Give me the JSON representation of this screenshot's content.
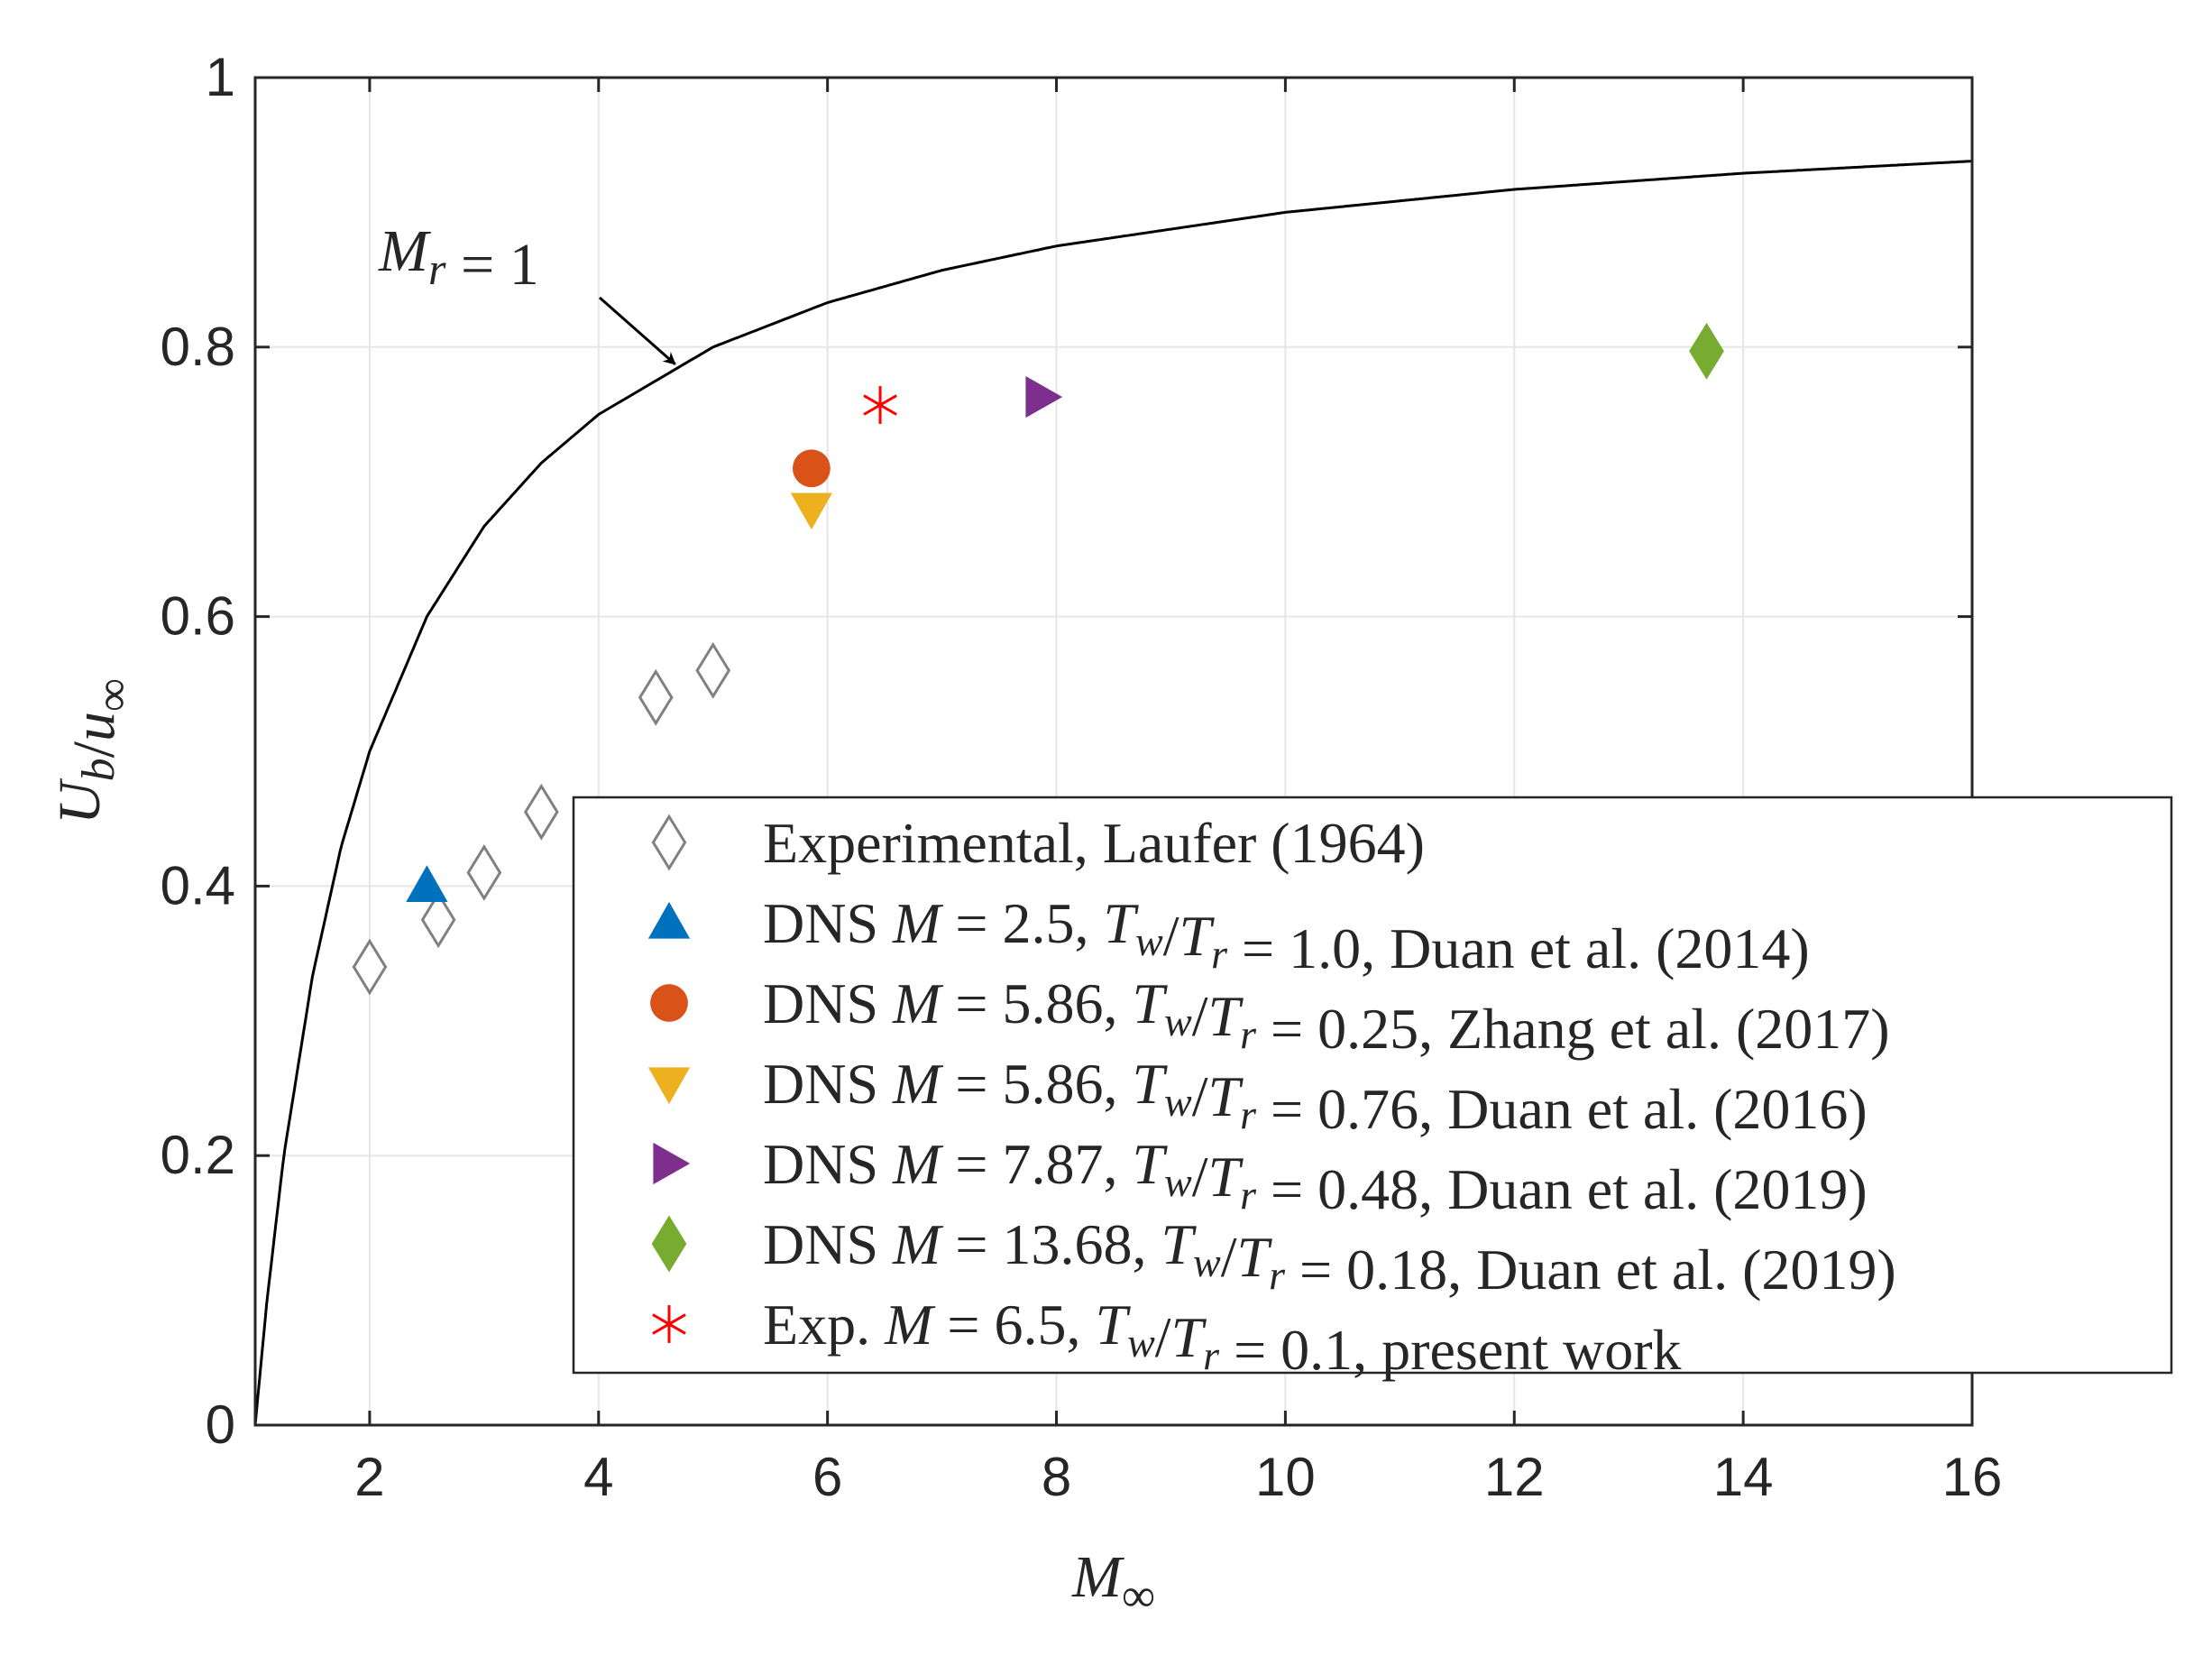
{
  "chart_data": {
    "type": "scatter",
    "xlabel": "M∞",
    "ylabel": "U_b/u∞",
    "xlim": [
      1,
      16
    ],
    "ylim": [
      0,
      1
    ],
    "xticks": [
      "2",
      "4",
      "6",
      "8",
      "10",
      "12",
      "14",
      "16"
    ],
    "yticks": [
      "0",
      "0.2",
      "0.4",
      "0.6",
      "0.8",
      "1"
    ],
    "grid": true,
    "curve": {
      "name": "M_r = 1",
      "label": "M_r = 1",
      "color": "#000000",
      "x": [
        1.0,
        1.1,
        1.25,
        1.5,
        1.75,
        2.0,
        2.5,
        3.0,
        3.5,
        4.0,
        5.0,
        6.0,
        7.0,
        8.0,
        10.0,
        12.0,
        14.0,
        16.0
      ],
      "y": [
        0.0,
        0.09,
        0.2,
        0.333,
        0.429,
        0.5,
        0.6,
        0.667,
        0.714,
        0.75,
        0.8,
        0.833,
        0.857,
        0.875,
        0.9,
        0.917,
        0.929,
        0.938
      ]
    },
    "series": [
      {
        "name": "Experimental, Laufer (1964)",
        "marker": "diamond-open",
        "color": "#808080",
        "points": [
          [
            2.0,
            0.34
          ],
          [
            2.6,
            0.375
          ],
          [
            3.0,
            0.41
          ],
          [
            3.5,
            0.455
          ],
          [
            4.5,
            0.54
          ],
          [
            5.0,
            0.56
          ]
        ]
      },
      {
        "name": "DNS M = 2.5, Tw/Tr = 1.0, Duan et al. (2014)",
        "marker": "triangle-up",
        "color": "#0072BD",
        "points": [
          [
            2.5,
            0.4
          ]
        ]
      },
      {
        "name": "DNS M = 5.86, Tw/Tr = 0.25, Zhang et al. (2017)",
        "marker": "circle",
        "color": "#D95319",
        "points": [
          [
            5.86,
            0.71
          ]
        ]
      },
      {
        "name": "DNS M = 5.86, Tw/Tr = 0.76, Duan et al. (2016)",
        "marker": "triangle-down",
        "color": "#EDB120",
        "points": [
          [
            5.86,
            0.68
          ]
        ]
      },
      {
        "name": "DNS M = 7.87, Tw/Tr = 0.48, Duan et al. (2019)",
        "marker": "triangle-right",
        "color": "#7E2F8E",
        "points": [
          [
            7.87,
            0.763
          ]
        ]
      },
      {
        "name": "DNS M = 13.68, Tw/Tr = 0.18, Duan et al. (2019)",
        "marker": "diamond",
        "color": "#77AC30",
        "points": [
          [
            13.68,
            0.797
          ]
        ]
      },
      {
        "name": "Exp. M = 6.5, Tw/Tr = 0.1, present work",
        "marker": "asterisk",
        "color": "#FF0000",
        "points": [
          [
            6.46,
            0.757
          ]
        ]
      }
    ],
    "legend": {
      "position": "lower-right",
      "entries": [
        {
          "marker": "diamond-open",
          "color": "#808080",
          "text": "Experimental, Laufer (1964)"
        },
        {
          "marker": "triangle-up",
          "color": "#0072BD",
          "text": "DNS M = 2.5, Tw/Tr = 1.0, Duan et al. (2014)"
        },
        {
          "marker": "circle",
          "color": "#D95319",
          "text": "DNS M = 5.86, Tw/Tr = 0.25, Zhang et al. (2017)"
        },
        {
          "marker": "triangle-down",
          "color": "#EDB120",
          "text": "DNS M = 5.86, Tw/Tr = 0.76, Duan et al. (2016)"
        },
        {
          "marker": "triangle-right",
          "color": "#7E2F8E",
          "text": "DNS M = 7.87, Tw/Tr = 0.48, Duan et al. (2019)"
        },
        {
          "marker": "diamond",
          "color": "#77AC30",
          "text": "DNS M = 13.68, Tw/Tr = 0.18, Duan et al. (2019)"
        },
        {
          "marker": "asterisk",
          "color": "#FF0000",
          "text": "Exp. M = 6.5, Tw/Tr = 0.1, present work"
        }
      ]
    },
    "annotation": {
      "text": "M_r = 1",
      "points_to": [
        4.7,
        0.79
      ]
    }
  }
}
